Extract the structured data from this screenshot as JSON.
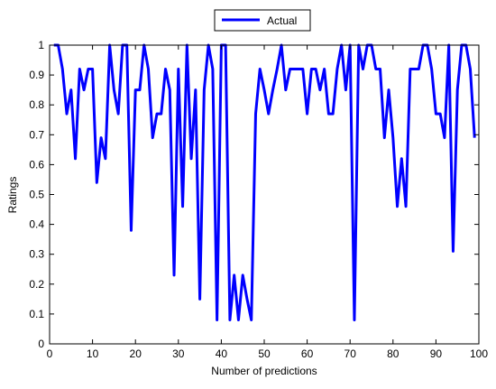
{
  "chart_data": {
    "type": "line",
    "xlabel": "Number of predictions",
    "ylabel": "Ratings",
    "xlim": [
      0,
      100
    ],
    "ylim": [
      0,
      1
    ],
    "xticks": [
      0,
      10,
      20,
      30,
      40,
      50,
      60,
      70,
      80,
      90,
      100
    ],
    "yticks": [
      0,
      0.1,
      0.2,
      0.3,
      0.4,
      0.5,
      0.6,
      0.7,
      0.8,
      0.9,
      1
    ],
    "xtick_labels": [
      "0",
      "10",
      "20",
      "30",
      "40",
      "50",
      "60",
      "70",
      "80",
      "90",
      "100"
    ],
    "ytick_labels": [
      "0",
      "0.1",
      "0.2",
      "0.3",
      "0.4",
      "0.5",
      "0.6",
      "0.7",
      "0.8",
      "0.9",
      "1"
    ],
    "grid": false,
    "legend_position": "top-center",
    "series": [
      {
        "name": "Actual",
        "color": "#0000ff",
        "x": [
          1,
          2,
          3,
          4,
          5,
          6,
          7,
          8,
          9,
          10,
          11,
          12,
          13,
          14,
          15,
          16,
          17,
          18,
          19,
          20,
          21,
          22,
          23,
          24,
          25,
          26,
          27,
          28,
          29,
          30,
          31,
          32,
          33,
          34,
          35,
          36,
          37,
          38,
          39,
          40,
          41,
          42,
          43,
          44,
          45,
          46,
          47,
          48,
          49,
          50,
          51,
          52,
          53,
          54,
          55,
          56,
          57,
          58,
          59,
          60,
          61,
          62,
          63,
          64,
          65,
          66,
          67,
          68,
          69,
          70,
          71,
          72,
          73,
          74,
          75,
          76,
          77,
          78,
          79,
          80,
          81,
          82,
          83,
          84,
          85,
          86,
          87,
          88,
          89,
          90,
          91,
          92,
          93,
          94,
          95,
          96,
          97,
          98,
          99
        ],
        "y": [
          1,
          1,
          0.92,
          0.77,
          0.85,
          0.62,
          0.92,
          0.85,
          0.92,
          0.92,
          0.54,
          0.69,
          0.62,
          1,
          0.85,
          0.77,
          1,
          1,
          0.38,
          0.85,
          0.85,
          1,
          0.92,
          0.69,
          0.77,
          0.77,
          0.92,
          0.85,
          0.23,
          0.92,
          0.46,
          1,
          0.62,
          0.85,
          0.15,
          0.85,
          1,
          0.92,
          0.08,
          1,
          1,
          0.08,
          0.23,
          0.08,
          0.23,
          0.15,
          0.08,
          0.77,
          0.92,
          0.85,
          0.77,
          0.85,
          0.92,
          1,
          0.85,
          0.92,
          0.92,
          0.92,
          0.92,
          0.77,
          0.92,
          0.92,
          0.85,
          0.92,
          0.77,
          0.77,
          0.92,
          1,
          0.85,
          1,
          0.08,
          1,
          0.92,
          1,
          1,
          0.92,
          0.92,
          0.69,
          0.85,
          0.69,
          0.46,
          0.62,
          0.46,
          0.92,
          0.92,
          0.92,
          1,
          1,
          0.92,
          0.77,
          0.77,
          0.69,
          1,
          0.31,
          0.85,
          1,
          1,
          0.92,
          0.69
        ]
      }
    ]
  }
}
